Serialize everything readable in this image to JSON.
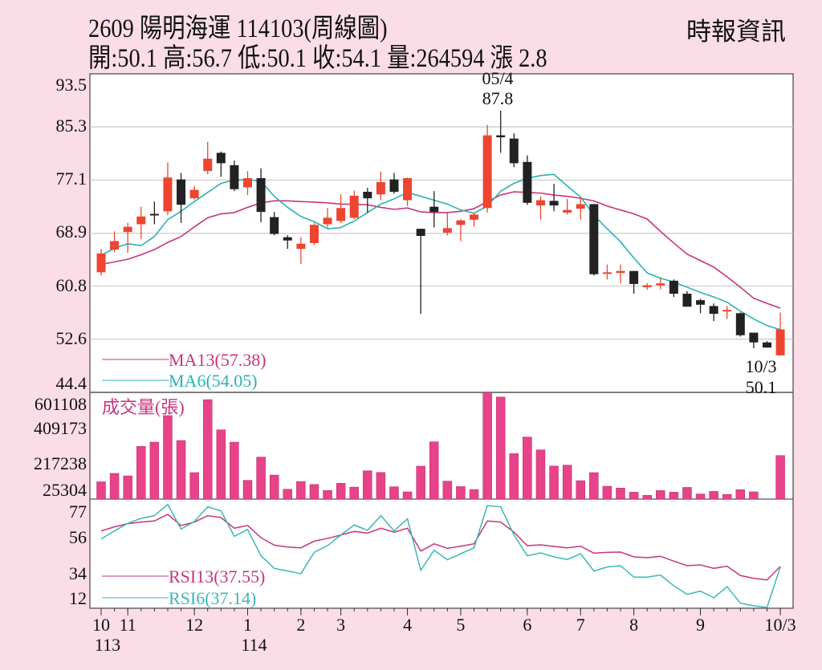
{
  "header": {
    "title": "2609  陽明海運 114103(周線圖)",
    "ohlc_line": "開:50.1 高:56.7 低:50.1 收:54.1 量:264594 漲 2.8",
    "brand": "時報資訊"
  },
  "colors": {
    "up": "#ee4530",
    "down": "#222222",
    "ma13": "#c8357d",
    "ma6": "#2ab2b5",
    "volume": "#e8428a",
    "rsi13": "#c8357d",
    "rsi6": "#3bb7b8",
    "background": "#fbdde8"
  },
  "chart_data": [
    {
      "type": "candlestick",
      "title": "2609 陽明海運 週線圖",
      "ylim": [
        44.4,
        93.5
      ],
      "yticks": [
        "93.5",
        "85.3",
        "77.1",
        "68.9",
        "60.8",
        "52.6",
        "44.4"
      ],
      "grid": true,
      "annotations": [
        {
          "date": "05/4",
          "value": "87.8",
          "index": 30
        },
        {
          "date": "10/3",
          "value": "50.1",
          "index": 51
        }
      ],
      "ohlc": [
        [
          62.9,
          66.5,
          62.4,
          65.8
        ],
        [
          66.4,
          69.2,
          66.0,
          67.7
        ],
        [
          69.1,
          70.5,
          65.9,
          69.9
        ],
        [
          70.3,
          73.0,
          68.0,
          71.5
        ],
        [
          71.9,
          73.8,
          70.3,
          71.8
        ],
        [
          72.3,
          79.8,
          71.7,
          77.5
        ],
        [
          77.2,
          78.2,
          70.5,
          73.3
        ],
        [
          74.3,
          76.2,
          74.1,
          75.6
        ],
        [
          78.5,
          83.0,
          78.0,
          80.4
        ],
        [
          81.3,
          81.5,
          77.6,
          79.7
        ],
        [
          79.4,
          80.1,
          75.4,
          75.7
        ],
        [
          76.0,
          78.5,
          74.8,
          77.4
        ],
        [
          77.4,
          78.9,
          70.6,
          72.2
        ],
        [
          71.4,
          72.2,
          68.6,
          68.8
        ],
        [
          68.3,
          68.6,
          66.5,
          67.8
        ],
        [
          66.5,
          68.3,
          64.2,
          67.3
        ],
        [
          67.4,
          70.5,
          67.1,
          70.2
        ],
        [
          70.3,
          72.8,
          69.8,
          71.3
        ],
        [
          70.8,
          74.9,
          70.5,
          72.8
        ],
        [
          71.3,
          75.5,
          71.1,
          74.7
        ],
        [
          75.3,
          75.9,
          72.1,
          74.3
        ],
        [
          74.9,
          78.4,
          74.0,
          76.8
        ],
        [
          77.2,
          78.2,
          75.0,
          75.3
        ],
        [
          74.0,
          77.5,
          73.1,
          77.4
        ],
        [
          69.6,
          69.6,
          56.5,
          68.5
        ],
        [
          73.0,
          75.4,
          69.8,
          72.2
        ],
        [
          69.0,
          72.1,
          68.6,
          69.7
        ],
        [
          70.2,
          71.1,
          67.7,
          70.9
        ],
        [
          71.0,
          72.1,
          69.9,
          71.8
        ],
        [
          72.8,
          85.6,
          72.1,
          84.0
        ],
        [
          84.0,
          87.8,
          81.3,
          83.7
        ],
        [
          83.5,
          84.3,
          79.1,
          79.7
        ],
        [
          79.9,
          80.9,
          73.3,
          73.6
        ],
        [
          73.2,
          74.6,
          71.0,
          74.0
        ],
        [
          73.9,
          76.5,
          72.3,
          73.2
        ],
        [
          72.1,
          74.2,
          71.8,
          72.5
        ],
        [
          72.7,
          74.4,
          71.0,
          73.4
        ],
        [
          73.4,
          73.4,
          62.4,
          62.6
        ],
        [
          62.8,
          64.1,
          61.8,
          62.9
        ],
        [
          62.8,
          64.1,
          61.2,
          63.1
        ],
        [
          63.1,
          63.1,
          59.6,
          61.1
        ],
        [
          60.6,
          61.2,
          60.2,
          60.9
        ],
        [
          60.9,
          62.0,
          60.3,
          61.2
        ],
        [
          61.6,
          61.8,
          59.1,
          59.6
        ],
        [
          59.6,
          60.0,
          57.6,
          57.6
        ],
        [
          58.6,
          58.8,
          56.6,
          57.9
        ],
        [
          57.7,
          58.1,
          55.4,
          56.5
        ],
        [
          56.9,
          57.7,
          55.7,
          57.1
        ],
        [
          56.6,
          56.7,
          53.0,
          53.2
        ],
        [
          53.6,
          53.6,
          51.2,
          52.1
        ],
        [
          52.1,
          52.3,
          51.3,
          51.3
        ],
        [
          50.1,
          56.7,
          50.1,
          54.1
        ]
      ],
      "series": [
        {
          "name": "MA13(57.38)",
          "values": [
            64.1,
            64.5,
            64.9,
            65.6,
            66.4,
            67.5,
            68.4,
            69.9,
            71.3,
            71.9,
            72.1,
            72.9,
            73.6,
            73.9,
            73.9,
            73.8,
            73.7,
            73.6,
            73.4,
            73.4,
            73.3,
            72.9,
            72.6,
            72.8,
            72.2,
            72.1,
            72.1,
            72.3,
            72.7,
            73.8,
            74.8,
            75.3,
            75.2,
            75.1,
            74.8,
            74.6,
            74.3,
            73.9,
            73.1,
            72.5,
            71.9,
            71.1,
            69.2,
            67.4,
            65.7,
            64.7,
            63.7,
            62.2,
            60.6,
            58.9,
            58.1,
            57.38
          ]
        },
        {
          "name": "MA6(54.05)",
          "values": [
            65.5,
            66.6,
            67.3,
            67.0,
            68.4,
            71.0,
            72.3,
            73.8,
            75.2,
            76.6,
            77.1,
            77.2,
            76.9,
            74.6,
            72.9,
            71.5,
            70.7,
            69.6,
            69.8,
            70.8,
            72.1,
            73.4,
            74.2,
            75.2,
            74.6,
            74.0,
            73.4,
            72.5,
            72.0,
            73.1,
            75.4,
            76.6,
            77.4,
            77.8,
            78.0,
            76.2,
            74.5,
            71.7,
            69.6,
            67.6,
            65.1,
            62.8,
            62.0,
            61.4,
            60.6,
            59.8,
            59.1,
            58.3,
            56.9,
            55.7,
            54.7,
            54.05
          ]
        }
      ]
    },
    {
      "type": "bar",
      "title": "成交量(張)",
      "yticks": [
        "601108",
        "409173",
        "217238",
        "25304"
      ],
      "values": [
        105000,
        156000,
        141000,
        320000,
        346000,
        507000,
        356000,
        161000,
        604000,
        421000,
        346000,
        114000,
        255000,
        146000,
        60000,
        107000,
        89000,
        52000,
        96000,
        73000,
        172000,
        162000,
        75000,
        44000,
        200000,
        348000,
        109000,
        76000,
        58000,
        656000,
        620000,
        276000,
        377000,
        299000,
        201000,
        206000,
        112000,
        161000,
        78000,
        67000,
        42000,
        23000,
        52000,
        42000,
        71000,
        31000,
        47000,
        28000,
        57000,
        44000,
        0,
        264594
      ]
    },
    {
      "type": "line",
      "ylim": [
        0,
        85
      ],
      "yticks": [
        "77",
        "56",
        "34",
        "12"
      ],
      "series": [
        {
          "name": "RSI13(37.55)",
          "values": [
            64.2,
            67.2,
            69.6,
            70.8,
            71.6,
            76.6,
            68.2,
            70.8,
            75.6,
            74.2,
            66.2,
            68.2,
            59.1,
            53.5,
            52.1,
            51.5,
            56.5,
            58.5,
            61.1,
            63.8,
            62.5,
            66.2,
            63.2,
            66.2,
            49.1,
            54.5,
            51.1,
            52.7,
            54.5,
            71.6,
            70.8,
            63.2,
            53.1,
            53.7,
            52.5,
            51.5,
            52.7,
            47.5,
            48.1,
            48.3,
            44.7,
            44.1,
            45.1,
            41.5,
            38.1,
            38.7,
            36.1,
            37.7,
            30.7,
            28.6,
            27.4,
            37.55
          ]
        },
        {
          "name": "RSI6(37.14)",
          "values": [
            58.1,
            64.2,
            69.8,
            73.6,
            75.6,
            84.0,
            65.6,
            71.2,
            82.2,
            79.2,
            60.1,
            65.2,
            45.5,
            36.1,
            34.1,
            32.1,
            48.1,
            53.1,
            61.1,
            68.6,
            64.6,
            75.6,
            64.2,
            73.2,
            34.7,
            49.7,
            42.5,
            47.1,
            51.5,
            83.2,
            82.2,
            61.1,
            45.5,
            47.7,
            44.7,
            42.7,
            47.1,
            34.1,
            37.1,
            38.1,
            29.5,
            29.5,
            31.1,
            23.0,
            16.6,
            19.0,
            14.0,
            22.4,
            10.0,
            8.0,
            6.4,
            37.14
          ]
        }
      ]
    }
  ],
  "xaxis": {
    "ticks": [
      {
        "label": "10",
        "index": 0
      },
      {
        "label": "11",
        "index": 2
      },
      {
        "label": "12",
        "index": 7
      },
      {
        "label": "1",
        "index": 11
      },
      {
        "label": "2",
        "index": 15
      },
      {
        "label": "3",
        "index": 18
      },
      {
        "label": "4",
        "index": 23
      },
      {
        "label": "5",
        "index": 27
      },
      {
        "label": "6",
        "index": 32
      },
      {
        "label": "7",
        "index": 36
      },
      {
        "label": "8",
        "index": 40
      },
      {
        "label": "9",
        "index": 45
      },
      {
        "label": "10/3",
        "index": 51
      }
    ],
    "years": [
      {
        "label": "113",
        "index": 0
      },
      {
        "label": "114",
        "index": 11
      }
    ]
  }
}
